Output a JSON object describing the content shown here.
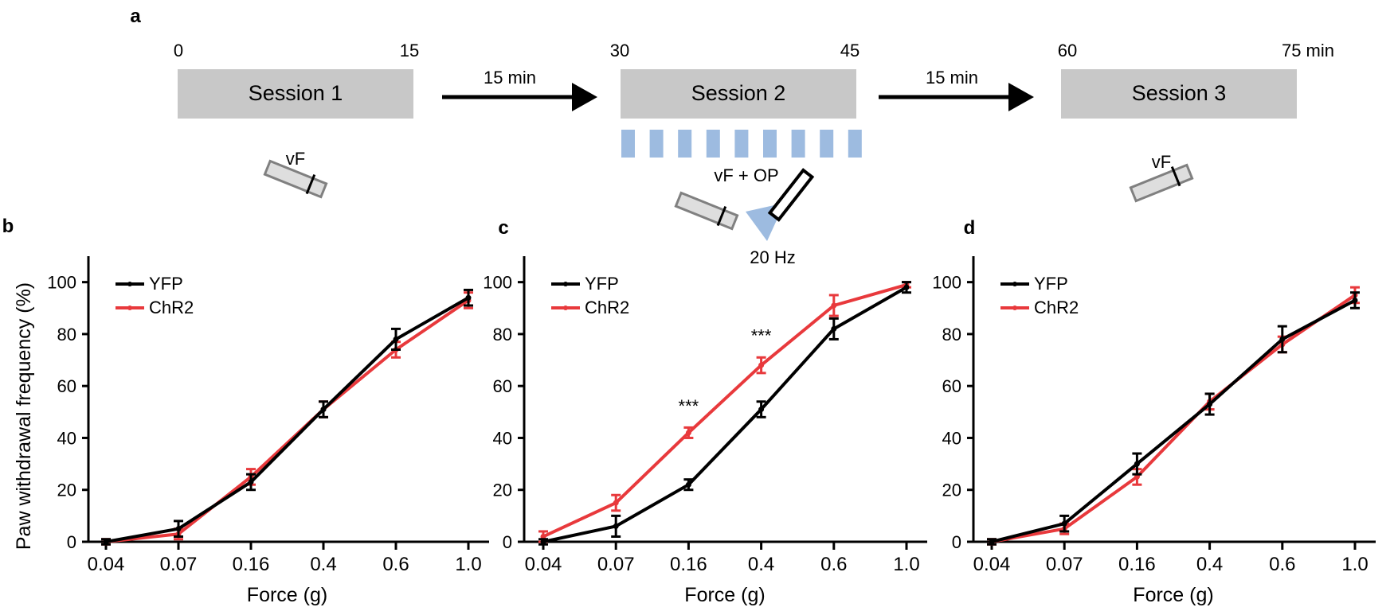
{
  "panel_a": {
    "label": "a",
    "time_labels": [
      "0",
      "15",
      "30",
      "45",
      "60",
      "75 min"
    ],
    "sessions": [
      "Session 1",
      "Session 2",
      "Session 3"
    ],
    "intervals": [
      "15 min",
      "15 min"
    ],
    "stim_labels": {
      "s1": "vF",
      "s2": "vF + OP",
      "s3": "vF"
    },
    "frequency_label": "20 Hz",
    "session_color": "#c8c8c8",
    "light_color": "#9dbbe0"
  },
  "colors": {
    "YFP": "#000000",
    "ChR2": "#e8393c"
  },
  "chart_data": [
    {
      "panel": "b",
      "type": "line",
      "title": "",
      "xlabel": "Force (g)",
      "ylabel": "Paw withdrawal frequency (%)",
      "categories": [
        "0.04",
        "0.07",
        "0.16",
        "0.4",
        "0.6",
        "1.0"
      ],
      "ylim": [
        0,
        110
      ],
      "yticks": [
        0,
        20,
        40,
        60,
        80,
        100
      ],
      "legend": "top-left",
      "annotations": [],
      "series": [
        {
          "name": "YFP",
          "color": "#000000",
          "values": [
            0,
            5,
            23,
            51,
            78,
            94
          ],
          "errors": [
            1,
            3,
            3,
            3,
            4,
            3
          ]
        },
        {
          "name": "ChR2",
          "color": "#e8393c",
          "values": [
            0,
            3,
            25,
            51,
            74,
            93
          ],
          "errors": [
            1,
            2,
            3,
            3,
            3,
            3
          ]
        }
      ]
    },
    {
      "panel": "c",
      "type": "line",
      "title": "",
      "xlabel": "Force (g)",
      "ylabel": "",
      "categories": [
        "0.04",
        "0.07",
        "0.16",
        "0.4",
        "0.6",
        "1.0"
      ],
      "ylim": [
        0,
        110
      ],
      "yticks": [
        0,
        20,
        40,
        60,
        80,
        100
      ],
      "legend": "top-left",
      "annotations": [
        {
          "category_index": 2,
          "y": 50,
          "text": "***"
        },
        {
          "category_index": 3,
          "y": 77,
          "text": "***"
        }
      ],
      "series": [
        {
          "name": "YFP",
          "color": "#000000",
          "values": [
            0,
            6,
            22,
            51,
            82,
            98
          ],
          "errors": [
            1,
            4,
            2,
            3,
            4,
            2
          ]
        },
        {
          "name": "ChR2",
          "color": "#e8393c",
          "values": [
            2,
            15,
            42,
            68,
            91,
            99
          ],
          "errors": [
            2,
            3,
            2,
            3,
            4,
            1
          ]
        }
      ]
    },
    {
      "panel": "d",
      "type": "line",
      "title": "",
      "xlabel": "Force (g)",
      "ylabel": "",
      "categories": [
        "0.04",
        "0.07",
        "0.16",
        "0.4",
        "0.6",
        "1.0"
      ],
      "ylim": [
        0,
        110
      ],
      "yticks": [
        0,
        20,
        40,
        60,
        80,
        100
      ],
      "legend": "top-left",
      "annotations": [],
      "series": [
        {
          "name": "YFP",
          "color": "#000000",
          "values": [
            0,
            7,
            30,
            53,
            78,
            93
          ],
          "errors": [
            1,
            3,
            4,
            4,
            5,
            3
          ]
        },
        {
          "name": "ChR2",
          "color": "#e8393c",
          "values": [
            0,
            5,
            25,
            54,
            76,
            95
          ],
          "errors": [
            1,
            2,
            3,
            3,
            3,
            3
          ]
        }
      ]
    }
  ]
}
